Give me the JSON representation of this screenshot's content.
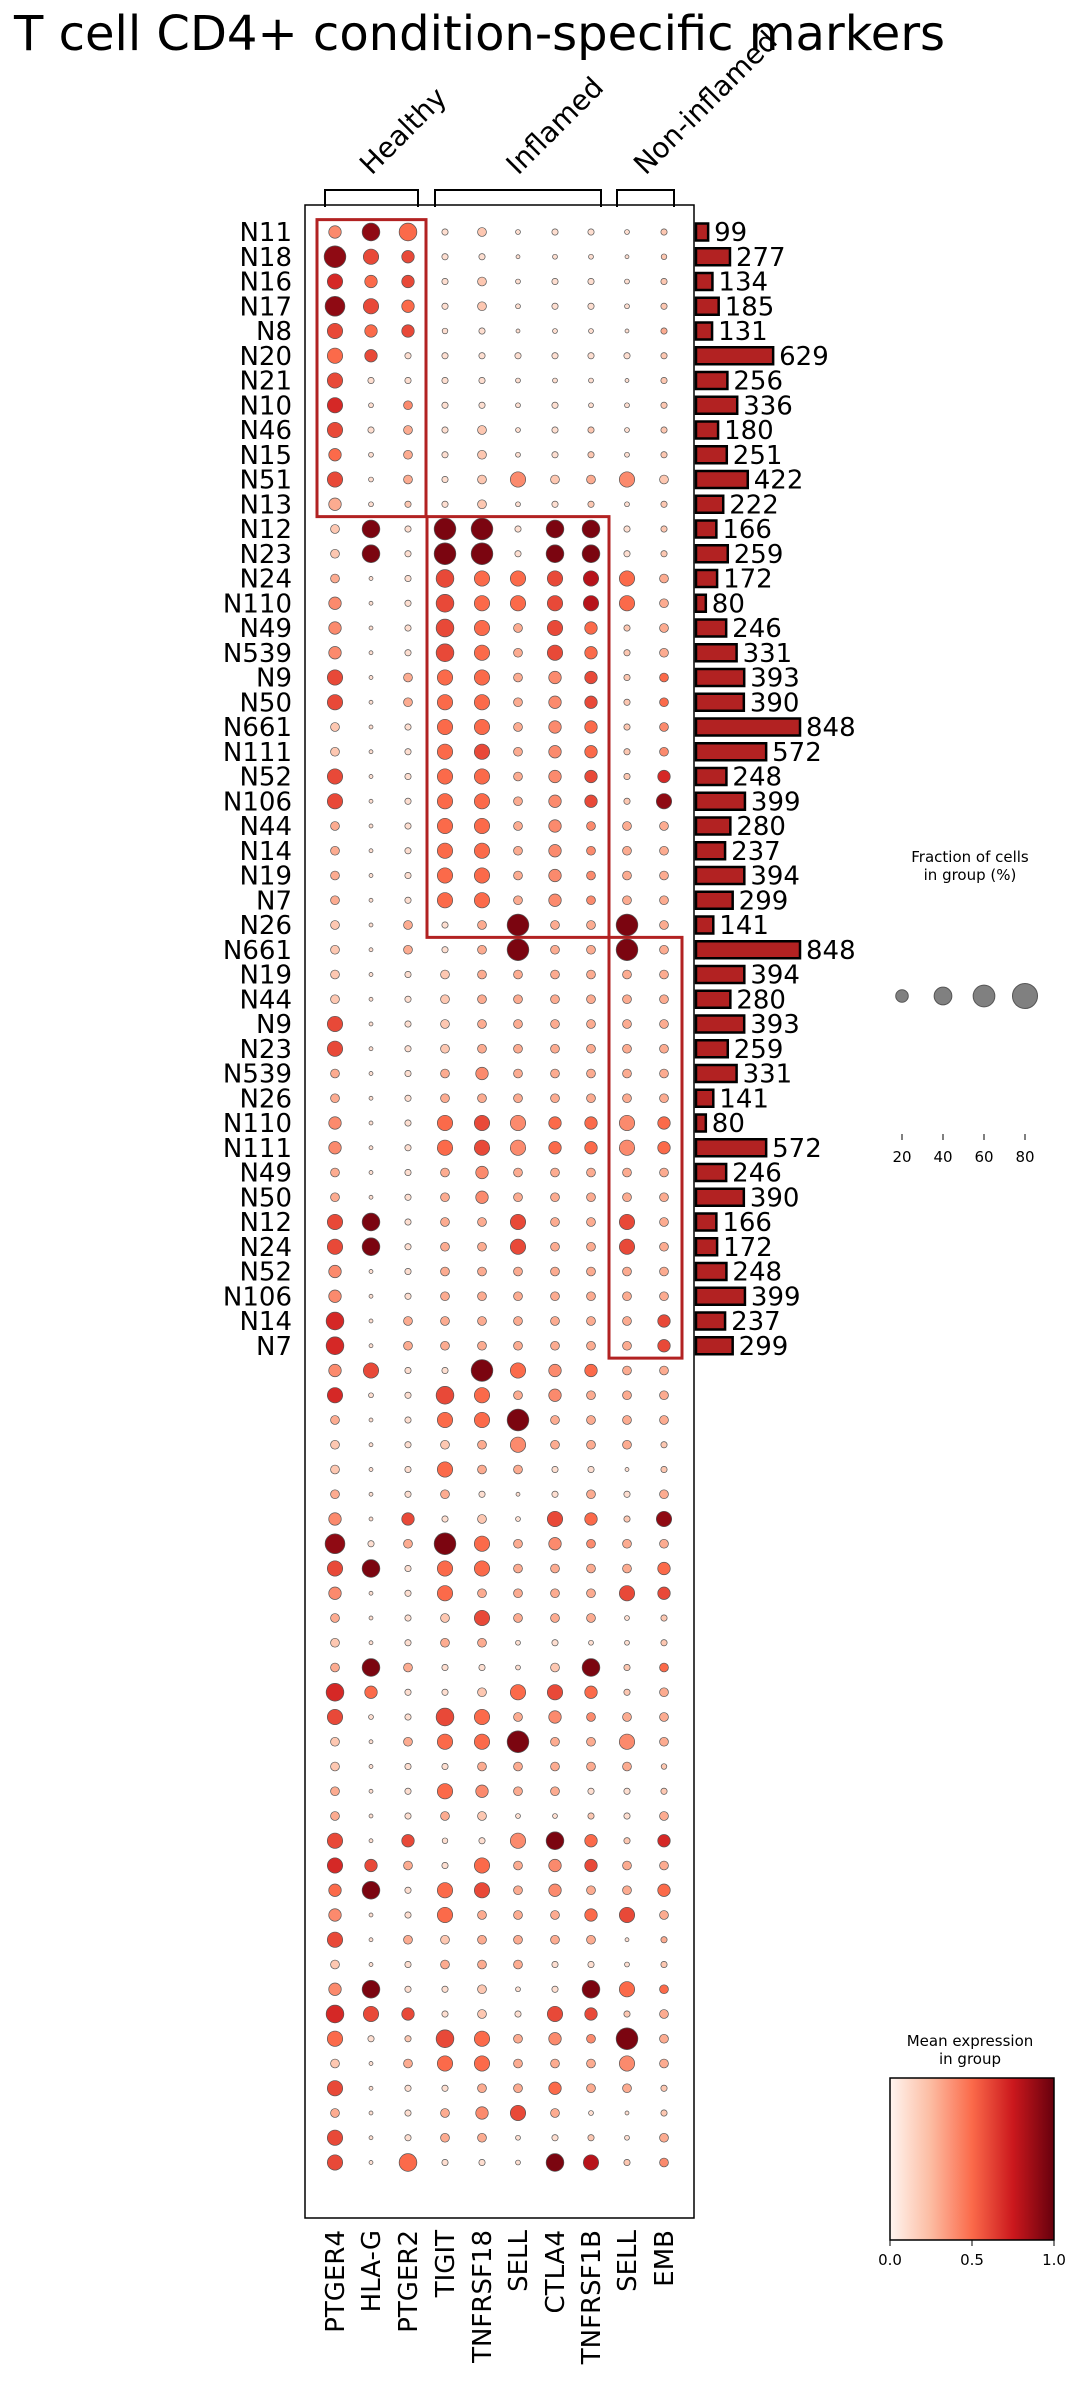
{
  "title": "T cell CD4+ condition-specific markers",
  "chart_data": {
    "type": "dotplot",
    "title": "T cell CD4+ condition-specific markers",
    "genes": [
      "PTGER4",
      "HLA-G",
      "PTGER2",
      "TIGIT",
      "TNFRSF18",
      "SELL",
      "CTLA4",
      "TNFRSF1B",
      "SELL",
      "EMB"
    ],
    "gene_groups": [
      {
        "label": "Healthy",
        "start": 0,
        "end": 2
      },
      {
        "label": "Inflamed",
        "start": 3,
        "end": 7
      },
      {
        "label": "Non-inflamed",
        "start": 8,
        "end": 9
      }
    ],
    "rows": [
      "N11",
      "N18",
      "N16",
      "N17",
      "N8",
      "N20",
      "N21",
      "N10",
      "N46",
      "N15",
      "N51",
      "N13",
      "N12",
      "N23",
      "N24",
      "N110",
      "N49",
      "N539",
      "N9",
      "N50",
      "N661",
      "N111",
      "N52",
      "N106",
      "N44",
      "N14",
      "N19",
      "N7",
      "N26",
      "N661",
      "N19",
      "N44",
      "N9",
      "N23",
      "N539",
      "N26",
      "N110",
      "N111",
      "N49",
      "N50",
      "N12",
      "N24",
      "N52",
      "N106",
      "N14",
      "N7"
    ],
    "row_group_ranges": [
      {
        "group": "Healthy",
        "row_start": 0,
        "row_end": 11
      },
      {
        "group": "Inflamed",
        "row_start": 12,
        "row_end": 28
      },
      {
        "group": "Non-inflamed",
        "row_start": 29,
        "row_end": 45
      }
    ],
    "cell_counts": [
      99,
      277,
      134,
      185,
      131,
      629,
      256,
      336,
      180,
      251,
      422,
      222,
      166,
      259,
      172,
      80,
      246,
      331,
      393,
      390,
      848,
      572,
      248,
      399,
      280,
      237,
      394,
      299,
      141,
      848,
      394,
      280,
      393,
      259,
      331,
      141,
      80,
      572,
      246,
      390,
      166,
      172,
      248,
      399,
      237,
      299
    ],
    "bar_max": 848,
    "fraction": [
      [
        0.2,
        0.4,
        0.4,
        0.05,
        0.1,
        0.03,
        0.05,
        0.05,
        0.03,
        0.05
      ],
      [
        0.6,
        0.3,
        0.2,
        0.05,
        0.05,
        0.02,
        0.03,
        0.03,
        0.02,
        0.04
      ],
      [
        0.3,
        0.2,
        0.2,
        0.05,
        0.1,
        0.03,
        0.05,
        0.05,
        0.03,
        0.05
      ],
      [
        0.5,
        0.3,
        0.2,
        0.05,
        0.1,
        0.03,
        0.05,
        0.05,
        0.03,
        0.05
      ],
      [
        0.3,
        0.2,
        0.2,
        0.04,
        0.05,
        0.02,
        0.03,
        0.03,
        0.02,
        0.05
      ],
      [
        0.3,
        0.2,
        0.05,
        0.05,
        0.05,
        0.05,
        0.05,
        0.05,
        0.05,
        0.05
      ],
      [
        0.3,
        0.05,
        0.05,
        0.05,
        0.05,
        0.03,
        0.03,
        0.03,
        0.02,
        0.05
      ],
      [
        0.3,
        0.03,
        0.1,
        0.05,
        0.05,
        0.03,
        0.05,
        0.03,
        0.03,
        0.05
      ],
      [
        0.3,
        0.05,
        0.1,
        0.05,
        0.1,
        0.03,
        0.05,
        0.05,
        0.03,
        0.05
      ],
      [
        0.2,
        0.03,
        0.1,
        0.05,
        0.1,
        0.03,
        0.05,
        0.05,
        0.03,
        0.05
      ],
      [
        0.3,
        0.03,
        0.1,
        0.05,
        0.1,
        0.3,
        0.1,
        0.1,
        0.3,
        0.1
      ],
      [
        0.2,
        0.03,
        0.05,
        0.05,
        0.1,
        0.03,
        0.05,
        0.05,
        0.03,
        0.05
      ],
      [
        0.1,
        0.4,
        0.05,
        0.6,
        0.6,
        0.05,
        0.4,
        0.4,
        0.05,
        0.05
      ],
      [
        0.1,
        0.4,
        0.05,
        0.6,
        0.6,
        0.05,
        0.4,
        0.4,
        0.05,
        0.05
      ],
      [
        0.1,
        0.02,
        0.05,
        0.4,
        0.3,
        0.3,
        0.3,
        0.3,
        0.3,
        0.1
      ],
      [
        0.2,
        0.02,
        0.05,
        0.4,
        0.3,
        0.3,
        0.3,
        0.3,
        0.3,
        0.1
      ],
      [
        0.2,
        0.02,
        0.05,
        0.4,
        0.3,
        0.1,
        0.3,
        0.2,
        0.05,
        0.1
      ],
      [
        0.2,
        0.02,
        0.05,
        0.4,
        0.3,
        0.1,
        0.3,
        0.2,
        0.05,
        0.1
      ],
      [
        0.3,
        0.02,
        0.1,
        0.3,
        0.3,
        0.1,
        0.2,
        0.2,
        0.05,
        0.1
      ],
      [
        0.3,
        0.02,
        0.1,
        0.3,
        0.3,
        0.1,
        0.2,
        0.2,
        0.05,
        0.1
      ],
      [
        0.1,
        0.02,
        0.05,
        0.3,
        0.3,
        0.1,
        0.2,
        0.2,
        0.05,
        0.1
      ],
      [
        0.1,
        0.02,
        0.05,
        0.3,
        0.3,
        0.1,
        0.2,
        0.2,
        0.05,
        0.1
      ],
      [
        0.3,
        0.02,
        0.05,
        0.3,
        0.3,
        0.1,
        0.2,
        0.2,
        0.05,
        0.2
      ],
      [
        0.3,
        0.02,
        0.05,
        0.3,
        0.3,
        0.1,
        0.2,
        0.2,
        0.05,
        0.3
      ],
      [
        0.1,
        0.02,
        0.05,
        0.3,
        0.3,
        0.1,
        0.2,
        0.1,
        0.1,
        0.1
      ],
      [
        0.1,
        0.02,
        0.05,
        0.3,
        0.3,
        0.1,
        0.2,
        0.1,
        0.1,
        0.1
      ],
      [
        0.1,
        0.02,
        0.05,
        0.3,
        0.3,
        0.1,
        0.2,
        0.1,
        0.1,
        0.1
      ],
      [
        0.1,
        0.02,
        0.05,
        0.3,
        0.3,
        0.1,
        0.2,
        0.1,
        0.1,
        0.1
      ],
      [
        0.1,
        0.02,
        0.1,
        0.05,
        0.1,
        0.6,
        0.1,
        0.1,
        0.6,
        0.1
      ],
      [
        0.1,
        0.02,
        0.1,
        0.05,
        0.1,
        0.6,
        0.1,
        0.1,
        0.6,
        0.1
      ],
      [
        0.1,
        0.02,
        0.05,
        0.1,
        0.1,
        0.1,
        0.1,
        0.1,
        0.1,
        0.1
      ],
      [
        0.1,
        0.02,
        0.05,
        0.1,
        0.1,
        0.1,
        0.1,
        0.1,
        0.1,
        0.1
      ],
      [
        0.3,
        0.02,
        0.05,
        0.1,
        0.1,
        0.1,
        0.1,
        0.1,
        0.1,
        0.1
      ],
      [
        0.3,
        0.02,
        0.05,
        0.1,
        0.1,
        0.1,
        0.1,
        0.1,
        0.1,
        0.1
      ],
      [
        0.1,
        0.02,
        0.05,
        0.1,
        0.2,
        0.1,
        0.1,
        0.1,
        0.1,
        0.1
      ],
      [
        0.1,
        0.02,
        0.05,
        0.1,
        0.1,
        0.1,
        0.1,
        0.1,
        0.1,
        0.1
      ],
      [
        0.2,
        0.02,
        0.05,
        0.3,
        0.3,
        0.3,
        0.2,
        0.2,
        0.3,
        0.2
      ],
      [
        0.2,
        0.02,
        0.05,
        0.3,
        0.3,
        0.3,
        0.2,
        0.2,
        0.3,
        0.2
      ],
      [
        0.1,
        0.02,
        0.05,
        0.1,
        0.2,
        0.1,
        0.1,
        0.1,
        0.1,
        0.1
      ],
      [
        0.1,
        0.02,
        0.05,
        0.1,
        0.2,
        0.1,
        0.1,
        0.1,
        0.1,
        0.1
      ],
      [
        0.3,
        0.4,
        0.05,
        0.1,
        0.1,
        0.3,
        0.1,
        0.1,
        0.3,
        0.1
      ],
      [
        0.3,
        0.4,
        0.05,
        0.1,
        0.1,
        0.3,
        0.1,
        0.1,
        0.3,
        0.1
      ],
      [
        0.2,
        0.02,
        0.05,
        0.1,
        0.1,
        0.1,
        0.1,
        0.1,
        0.1,
        0.1
      ],
      [
        0.2,
        0.02,
        0.05,
        0.1,
        0.1,
        0.1,
        0.1,
        0.1,
        0.1,
        0.1
      ],
      [
        0.4,
        0.02,
        0.1,
        0.1,
        0.1,
        0.1,
        0.1,
        0.1,
        0.1,
        0.2
      ],
      [
        0.4,
        0.02,
        0.1,
        0.1,
        0.1,
        0.1,
        0.1,
        0.1,
        0.1,
        0.2
      ]
    ],
    "expression": [
      [
        0.4,
        0.9,
        0.5,
        0.1,
        0.2,
        0.1,
        0.1,
        0.1,
        0.1,
        0.2
      ],
      [
        0.9,
        0.6,
        0.6,
        0.1,
        0.1,
        0.1,
        0.1,
        0.1,
        0.1,
        0.2
      ],
      [
        0.7,
        0.5,
        0.6,
        0.1,
        0.2,
        0.1,
        0.1,
        0.1,
        0.1,
        0.2
      ],
      [
        0.9,
        0.6,
        0.5,
        0.1,
        0.2,
        0.1,
        0.1,
        0.1,
        0.1,
        0.2
      ],
      [
        0.6,
        0.5,
        0.6,
        0.1,
        0.1,
        0.1,
        0.1,
        0.1,
        0.1,
        0.3
      ],
      [
        0.5,
        0.6,
        0.1,
        0.1,
        0.1,
        0.1,
        0.1,
        0.1,
        0.1,
        0.2
      ],
      [
        0.6,
        0.1,
        0.1,
        0.1,
        0.1,
        0.1,
        0.1,
        0.1,
        0.1,
        0.2
      ],
      [
        0.7,
        0.1,
        0.4,
        0.1,
        0.1,
        0.1,
        0.1,
        0.1,
        0.1,
        0.2
      ],
      [
        0.6,
        0.1,
        0.3,
        0.1,
        0.2,
        0.1,
        0.1,
        0.2,
        0.1,
        0.2
      ],
      [
        0.5,
        0.1,
        0.3,
        0.1,
        0.2,
        0.1,
        0.1,
        0.2,
        0.1,
        0.2
      ],
      [
        0.6,
        0.1,
        0.3,
        0.1,
        0.2,
        0.4,
        0.2,
        0.3,
        0.4,
        0.2
      ],
      [
        0.3,
        0.1,
        0.2,
        0.1,
        0.2,
        0.1,
        0.1,
        0.2,
        0.1,
        0.2
      ],
      [
        0.2,
        0.95,
        0.1,
        0.95,
        0.95,
        0.1,
        0.95,
        0.95,
        0.1,
        0.2
      ],
      [
        0.2,
        0.95,
        0.1,
        0.95,
        0.95,
        0.1,
        0.95,
        0.95,
        0.1,
        0.2
      ],
      [
        0.3,
        0.1,
        0.1,
        0.6,
        0.5,
        0.5,
        0.6,
        0.8,
        0.5,
        0.3
      ],
      [
        0.4,
        0.1,
        0.1,
        0.6,
        0.5,
        0.5,
        0.6,
        0.8,
        0.5,
        0.3
      ],
      [
        0.4,
        0.1,
        0.1,
        0.6,
        0.5,
        0.3,
        0.6,
        0.5,
        0.2,
        0.3
      ],
      [
        0.4,
        0.1,
        0.1,
        0.6,
        0.5,
        0.3,
        0.6,
        0.5,
        0.2,
        0.3
      ],
      [
        0.6,
        0.1,
        0.3,
        0.5,
        0.5,
        0.3,
        0.4,
        0.6,
        0.2,
        0.5
      ],
      [
        0.6,
        0.1,
        0.3,
        0.5,
        0.5,
        0.3,
        0.4,
        0.6,
        0.2,
        0.5
      ],
      [
        0.2,
        0.1,
        0.1,
        0.5,
        0.5,
        0.3,
        0.4,
        0.5,
        0.2,
        0.4
      ],
      [
        0.2,
        0.1,
        0.1,
        0.5,
        0.6,
        0.3,
        0.4,
        0.5,
        0.2,
        0.4
      ],
      [
        0.6,
        0.1,
        0.1,
        0.5,
        0.5,
        0.3,
        0.4,
        0.6,
        0.2,
        0.7
      ],
      [
        0.6,
        0.1,
        0.1,
        0.5,
        0.5,
        0.3,
        0.4,
        0.6,
        0.2,
        0.9
      ],
      [
        0.3,
        0.1,
        0.1,
        0.5,
        0.5,
        0.3,
        0.4,
        0.4,
        0.3,
        0.3
      ],
      [
        0.3,
        0.1,
        0.1,
        0.5,
        0.5,
        0.3,
        0.4,
        0.4,
        0.3,
        0.3
      ],
      [
        0.3,
        0.1,
        0.1,
        0.5,
        0.5,
        0.3,
        0.4,
        0.4,
        0.3,
        0.3
      ],
      [
        0.3,
        0.1,
        0.1,
        0.5,
        0.5,
        0.3,
        0.4,
        0.4,
        0.3,
        0.3
      ],
      [
        0.2,
        0.1,
        0.3,
        0.1,
        0.3,
        0.95,
        0.3,
        0.3,
        0.95,
        0.3
      ],
      [
        0.2,
        0.1,
        0.3,
        0.1,
        0.3,
        0.95,
        0.3,
        0.3,
        0.95,
        0.3
      ],
      [
        0.2,
        0.1,
        0.1,
        0.2,
        0.3,
        0.3,
        0.3,
        0.3,
        0.3,
        0.3
      ],
      [
        0.2,
        0.1,
        0.1,
        0.2,
        0.3,
        0.3,
        0.3,
        0.3,
        0.3,
        0.3
      ],
      [
        0.6,
        0.1,
        0.1,
        0.2,
        0.3,
        0.3,
        0.3,
        0.3,
        0.3,
        0.3
      ],
      [
        0.6,
        0.1,
        0.1,
        0.2,
        0.3,
        0.3,
        0.3,
        0.3,
        0.3,
        0.3
      ],
      [
        0.3,
        0.1,
        0.1,
        0.3,
        0.4,
        0.3,
        0.3,
        0.3,
        0.3,
        0.3
      ],
      [
        0.3,
        0.1,
        0.1,
        0.3,
        0.3,
        0.3,
        0.3,
        0.3,
        0.3,
        0.3
      ],
      [
        0.4,
        0.1,
        0.1,
        0.5,
        0.6,
        0.4,
        0.5,
        0.5,
        0.4,
        0.5
      ],
      [
        0.4,
        0.1,
        0.1,
        0.5,
        0.6,
        0.4,
        0.5,
        0.5,
        0.4,
        0.5
      ],
      [
        0.3,
        0.1,
        0.1,
        0.3,
        0.4,
        0.3,
        0.3,
        0.3,
        0.3,
        0.3
      ],
      [
        0.3,
        0.1,
        0.1,
        0.3,
        0.4,
        0.3,
        0.3,
        0.3,
        0.3,
        0.3
      ],
      [
        0.6,
        0.95,
        0.1,
        0.3,
        0.3,
        0.6,
        0.3,
        0.3,
        0.6,
        0.3
      ],
      [
        0.6,
        0.95,
        0.1,
        0.3,
        0.3,
        0.6,
        0.3,
        0.3,
        0.6,
        0.3
      ],
      [
        0.4,
        0.1,
        0.1,
        0.3,
        0.3,
        0.3,
        0.3,
        0.3,
        0.3,
        0.3
      ],
      [
        0.4,
        0.1,
        0.1,
        0.3,
        0.3,
        0.3,
        0.3,
        0.3,
        0.3,
        0.3
      ],
      [
        0.7,
        0.1,
        0.3,
        0.3,
        0.3,
        0.3,
        0.3,
        0.3,
        0.3,
        0.6
      ],
      [
        0.7,
        0.1,
        0.3,
        0.3,
        0.3,
        0.3,
        0.3,
        0.3,
        0.3,
        0.6
      ]
    ],
    "size_legend": {
      "title": "Fraction of cells\nin group (%)",
      "values": [
        20,
        40,
        60,
        80
      ]
    },
    "color_legend": {
      "title": "Mean expression\nin group",
      "ticks": [
        "0.0",
        "0.5",
        "1.0"
      ],
      "colors": [
        "#fff5f0",
        "#fcbba1",
        "#fb6a4a",
        "#cb181d",
        "#67000d"
      ]
    },
    "highlight_color": "#b22222",
    "bar_color": "#b22222"
  }
}
